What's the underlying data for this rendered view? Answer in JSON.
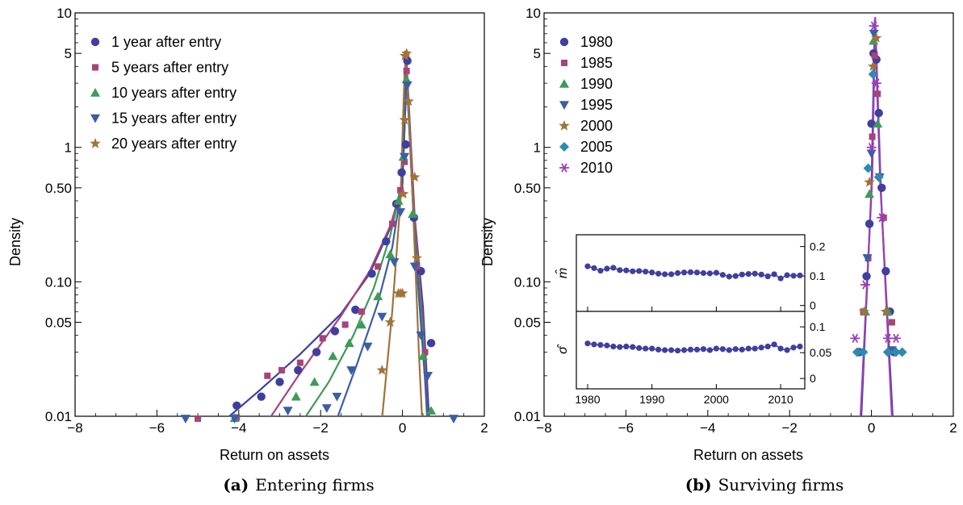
{
  "colors": {
    "s1": "#3f3f9f",
    "s2": "#a8437a",
    "s3": "#3e9a59",
    "s4": "#3a5ea6",
    "s5": "#a0733a",
    "s6": "#2f8ab0",
    "s7": "#9a3fb8"
  },
  "chart_data": [
    {
      "type": "scatter",
      "caption_prefix": "(a)",
      "caption": "Entering firms",
      "xlabel": "Return on assets",
      "ylabel": "Density",
      "xlim": [
        -8,
        2
      ],
      "ylim": [
        0.01,
        10
      ],
      "yscale": "log",
      "xticks": [
        "−8",
        "−6",
        "−4",
        "−2",
        "0",
        "2"
      ],
      "yticks": [
        "0.01",
        "0.05",
        "0.10",
        "0.50",
        "1",
        "5",
        "10"
      ],
      "legend_position": "top-left",
      "series": [
        {
          "name": "1 year after entry",
          "marker": "circle",
          "color": "s1",
          "points": [
            [
              -4.05,
              0.012
            ],
            [
              -3.45,
              0.014
            ],
            [
              -3.0,
              0.018
            ],
            [
              -2.55,
              0.022
            ],
            [
              -2.1,
              0.03
            ],
            [
              -1.65,
              0.043
            ],
            [
              -1.15,
              0.062
            ],
            [
              -0.75,
              0.115
            ],
            [
              -0.4,
              0.2
            ],
            [
              -0.15,
              0.38
            ],
            [
              -0.02,
              0.65
            ],
            [
              0.08,
              1.05
            ],
            [
              0.12,
              4.4
            ],
            [
              0.28,
              0.3
            ],
            [
              0.45,
              0.12
            ],
            [
              0.7,
              0.035
            ]
          ],
          "curve": [
            [
              -4.3,
              0.0096
            ],
            [
              -3.5,
              0.0155
            ],
            [
              -2.5,
              0.029
            ],
            [
              -1.5,
              0.058
            ],
            [
              -0.8,
              0.115
            ],
            [
              -0.3,
              0.25
            ],
            [
              0.0,
              0.55
            ],
            [
              0.1,
              4.3
            ],
            [
              0.3,
              0.3
            ],
            [
              0.5,
              0.065
            ],
            [
              0.65,
              0.0096
            ]
          ]
        },
        {
          "name": "5 years after entry",
          "marker": "square",
          "color": "s2",
          "points": [
            [
              -5.0,
              0.0096
            ],
            [
              -4.05,
              0.0098
            ],
            [
              -3.3,
              0.02
            ],
            [
              -2.95,
              0.022
            ],
            [
              -2.5,
              0.025
            ],
            [
              -1.95,
              0.038
            ],
            [
              -1.4,
              0.048
            ],
            [
              -1.0,
              0.06
            ],
            [
              -0.6,
              0.13
            ],
            [
              -0.25,
              0.27
            ],
            [
              -0.05,
              0.48
            ],
            [
              0.05,
              0.78
            ],
            [
              0.1,
              3.7
            ],
            [
              0.35,
              0.13
            ],
            [
              0.55,
              0.03
            ]
          ],
          "curve": [
            [
              -3.25,
              0.0096
            ],
            [
              -2.5,
              0.021
            ],
            [
              -1.5,
              0.056
            ],
            [
              -0.8,
              0.12
            ],
            [
              -0.3,
              0.26
            ],
            [
              0.0,
              0.52
            ],
            [
              0.1,
              3.8
            ],
            [
              0.3,
              0.28
            ],
            [
              0.5,
              0.05
            ],
            [
              0.62,
              0.0096
            ]
          ]
        },
        {
          "name": "10 years after entry",
          "marker": "triangle-up",
          "color": "s3",
          "points": [
            [
              -4.1,
              0.0097
            ],
            [
              -2.6,
              0.014
            ],
            [
              -2.15,
              0.018
            ],
            [
              -1.7,
              0.028
            ],
            [
              -1.3,
              0.035
            ],
            [
              -1.0,
              0.048
            ],
            [
              -0.6,
              0.078
            ],
            [
              -0.3,
              0.16
            ],
            [
              -0.1,
              0.4
            ],
            [
              0.02,
              0.85
            ],
            [
              0.1,
              3.2
            ],
            [
              0.25,
              0.32
            ],
            [
              0.5,
              0.028
            ],
            [
              0.7,
              0.011
            ]
          ],
          "curve": [
            [
              -2.4,
              0.0096
            ],
            [
              -1.8,
              0.018
            ],
            [
              -1.2,
              0.04
            ],
            [
              -0.7,
              0.09
            ],
            [
              -0.3,
              0.22
            ],
            [
              0.0,
              0.55
            ],
            [
              0.1,
              3.4
            ],
            [
              0.3,
              0.22
            ],
            [
              0.5,
              0.04
            ],
            [
              0.6,
              0.0096
            ]
          ]
        },
        {
          "name": "15 years after entry",
          "marker": "triangle-down",
          "color": "s4",
          "points": [
            [
              -5.3,
              0.0096
            ],
            [
              -4.1,
              0.0096
            ],
            [
              -2.8,
              0.011
            ],
            [
              -1.85,
              0.0115
            ],
            [
              -1.6,
              0.014
            ],
            [
              -1.25,
              0.022
            ],
            [
              -0.85,
              0.033
            ],
            [
              -0.5,
              0.055
            ],
            [
              -0.2,
              0.14
            ],
            [
              -0.05,
              0.33
            ],
            [
              0.05,
              0.85
            ],
            [
              0.12,
              2.9
            ],
            [
              0.3,
              0.13
            ],
            [
              0.45,
              0.04
            ],
            [
              0.62,
              0.02
            ],
            [
              1.25,
              0.0096
            ]
          ],
          "curve": [
            [
              -1.6,
              0.0096
            ],
            [
              -1.1,
              0.025
            ],
            [
              -0.6,
              0.07
            ],
            [
              -0.25,
              0.18
            ],
            [
              0.0,
              0.55
            ],
            [
              0.1,
              3.5
            ],
            [
              0.3,
              0.2
            ],
            [
              0.5,
              0.03
            ],
            [
              0.62,
              0.0096
            ]
          ]
        },
        {
          "name": "20 years after entry",
          "marker": "star",
          "color": "s5",
          "points": [
            [
              -0.5,
              0.022
            ],
            [
              -0.3,
              0.05
            ],
            [
              -0.1,
              0.082
            ],
            [
              -0.05,
              0.082
            ],
            [
              0.0,
              0.082
            ],
            [
              0.02,
              0.45
            ],
            [
              0.05,
              1.6
            ],
            [
              0.06,
              4.8
            ],
            [
              0.1,
              5.0
            ],
            [
              0.15,
              2.2
            ],
            [
              0.3,
              0.6
            ],
            [
              0.35,
              0.15
            ]
          ],
          "curve": [
            [
              -0.5,
              0.0096
            ],
            [
              -0.25,
              0.06
            ],
            [
              -0.05,
              0.4
            ],
            [
              0.05,
              3.5
            ],
            [
              0.08,
              4.6
            ],
            [
              0.12,
              3.0
            ],
            [
              0.25,
              0.4
            ],
            [
              0.4,
              0.03
            ],
            [
              0.48,
              0.0096
            ]
          ]
        }
      ]
    },
    {
      "type": "scatter",
      "caption_prefix": "(b)",
      "caption": "Surviving firms",
      "xlabel": "Return on assets",
      "ylabel": "Density",
      "xlim": [
        -8,
        2
      ],
      "ylim": [
        0.01,
        10
      ],
      "yscale": "log",
      "xticks": [
        "−8",
        "−6",
        "−4",
        "−2",
        "0",
        "2"
      ],
      "yticks": [
        "0.01",
        "0.05",
        "0.10",
        "0.50",
        "1",
        "5",
        "10"
      ],
      "legend_position": "top-left",
      "series": [
        {
          "name": "1980",
          "marker": "circle",
          "color": "s1",
          "points": [
            [
              -0.3,
              0.03
            ],
            [
              -0.12,
              0.11
            ],
            [
              -0.05,
              0.27
            ],
            [
              0.0,
              1.5
            ],
            [
              0.05,
              5.0
            ],
            [
              0.12,
              4.5
            ],
            [
              0.18,
              1.8
            ],
            [
              0.25,
              0.5
            ],
            [
              0.35,
              0.12
            ],
            [
              0.45,
              0.06
            ],
            [
              0.55,
              0.03
            ]
          ]
        },
        {
          "name": "1985",
          "marker": "square",
          "color": "s2",
          "points": [
            [
              -0.2,
              0.06
            ],
            [
              -0.08,
              0.15
            ],
            [
              0.02,
              1.2
            ],
            [
              0.08,
              4.8
            ],
            [
              0.15,
              2.5
            ],
            [
              0.3,
              0.3
            ],
            [
              0.5,
              0.05
            ]
          ]
        },
        {
          "name": "1990",
          "marker": "triangle-up",
          "color": "s3",
          "points": [
            [
              -0.15,
              0.06
            ],
            [
              -0.05,
              0.45
            ],
            [
              0.05,
              6.2
            ],
            [
              0.15,
              1.5
            ],
            [
              0.4,
              0.06
            ]
          ]
        },
        {
          "name": "1995",
          "marker": "triangle-down",
          "color": "s4",
          "points": [
            [
              -0.1,
              0.15
            ],
            [
              0.0,
              0.9
            ],
            [
              0.06,
              7.0
            ],
            [
              0.2,
              0.6
            ],
            [
              0.5,
              0.031
            ]
          ]
        },
        {
          "name": "2000",
          "marker": "star",
          "color": "s5",
          "points": [
            [
              -0.18,
              0.06
            ],
            [
              -0.05,
              0.55
            ],
            [
              0.04,
              4.0
            ],
            [
              0.12,
              6.5
            ],
            [
              0.35,
              0.06
            ]
          ]
        },
        {
          "name": "2005",
          "marker": "diamond",
          "color": "s6",
          "points": [
            [
              -0.35,
              0.03
            ],
            [
              -0.2,
              0.03
            ],
            [
              -0.08,
              0.7
            ],
            [
              0.04,
              3.5
            ],
            [
              0.18,
              0.6
            ],
            [
              0.4,
              0.03
            ],
            [
              0.6,
              0.03
            ],
            [
              0.75,
              0.03
            ]
          ]
        },
        {
          "name": "2010",
          "marker": "asterisk",
          "color": "s7",
          "points": [
            [
              -0.4,
              0.038
            ],
            [
              -0.15,
              0.095
            ],
            [
              0.0,
              1.0
            ],
            [
              0.06,
              8.0
            ],
            [
              0.12,
              3.0
            ],
            [
              0.25,
              0.3
            ],
            [
              0.4,
              0.038
            ],
            [
              0.6,
              0.038
            ]
          ]
        }
      ],
      "curves": [
        {
          "color": "s1",
          "points": [
            [
              -0.25,
              0.0096
            ],
            [
              0.0,
              0.5
            ],
            [
              0.08,
              8.8
            ],
            [
              0.22,
              0.5
            ],
            [
              0.52,
              0.0096
            ]
          ]
        },
        {
          "color": "s7",
          "points": [
            [
              -0.27,
              0.0096
            ],
            [
              0.02,
              0.6
            ],
            [
              0.09,
              9.2
            ],
            [
              0.24,
              0.4
            ],
            [
              0.5,
              0.0096
            ]
          ]
        }
      ],
      "inset": {
        "type": "line",
        "xticks": [
          "1980",
          "1990",
          "2000",
          "2010"
        ],
        "xlim": [
          1979,
          2013
        ],
        "top": {
          "ylabel": "m̂",
          "ylim": [
            -0.02,
            0.24
          ],
          "yticks": [
            "0",
            "0.1",
            "0.2"
          ],
          "x": [
            1980,
            1981,
            1982,
            1983,
            1984,
            1985,
            1986,
            1987,
            1988,
            1989,
            1990,
            1991,
            1992,
            1993,
            1994,
            1995,
            1996,
            1997,
            1998,
            1999,
            2000,
            2001,
            2002,
            2003,
            2004,
            2005,
            2006,
            2007,
            2008,
            2009,
            2010,
            2011,
            2012,
            2013
          ],
          "values": [
            0.133,
            0.127,
            0.118,
            0.125,
            0.128,
            0.12,
            0.119,
            0.116,
            0.117,
            0.115,
            0.112,
            0.108,
            0.106,
            0.106,
            0.11,
            0.112,
            0.113,
            0.112,
            0.11,
            0.109,
            0.111,
            0.104,
            0.098,
            0.1,
            0.105,
            0.107,
            0.108,
            0.105,
            0.099,
            0.106,
            0.092,
            0.103,
            0.101,
            0.102
          ]
        },
        "bottom": {
          "ylabel": "σ̂",
          "ylim": [
            -0.02,
            0.13
          ],
          "yticks": [
            "0",
            "0.05",
            "0.1"
          ],
          "x": [
            1980,
            1981,
            1982,
            1983,
            1984,
            1985,
            1986,
            1987,
            1988,
            1989,
            1990,
            1991,
            1992,
            1993,
            1994,
            1995,
            1996,
            1997,
            1998,
            1999,
            2000,
            2001,
            2002,
            2003,
            2004,
            2005,
            2006,
            2007,
            2008,
            2009,
            2010,
            2011,
            2012,
            2013
          ],
          "values": [
            0.068,
            0.066,
            0.065,
            0.064,
            0.062,
            0.061,
            0.062,
            0.061,
            0.059,
            0.058,
            0.058,
            0.056,
            0.055,
            0.055,
            0.054,
            0.055,
            0.056,
            0.056,
            0.057,
            0.055,
            0.058,
            0.057,
            0.055,
            0.057,
            0.056,
            0.058,
            0.058,
            0.06,
            0.062,
            0.066,
            0.058,
            0.055,
            0.06,
            0.062
          ]
        }
      }
    }
  ]
}
